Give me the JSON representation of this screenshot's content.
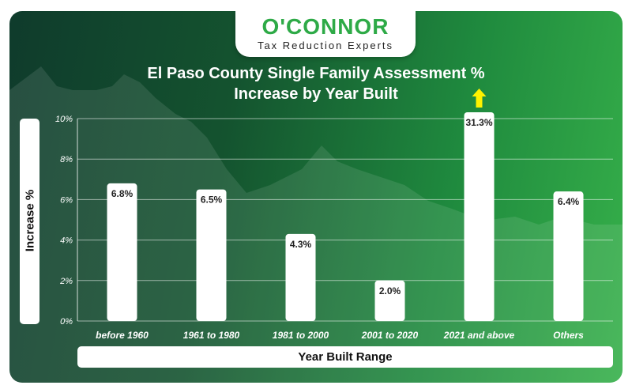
{
  "logo": {
    "name": "O'CONNOR",
    "tagline": "Tax Reduction Experts"
  },
  "colors": {
    "brand_green": "#2eaa47",
    "arrow": "#fff200",
    "bar": "#ffffff"
  },
  "chart_data": {
    "type": "bar",
    "title_line1": "El Paso County Single Family Assessment %",
    "title_line2": "Increase by Year Built",
    "xlabel": "Year Built Range",
    "ylabel": "Increase %",
    "categories": [
      "before 1960",
      "1961 to 1980",
      "1981 to 2000",
      "2001 to 2020",
      "2021 and above",
      "Others"
    ],
    "values": [
      6.8,
      6.5,
      4.3,
      2.0,
      31.3,
      6.4
    ],
    "data_labels": [
      "6.8%",
      "6.5%",
      "4.3%",
      "2.0%",
      "31.3%",
      "6.4%"
    ],
    "ylim": [
      0,
      10
    ],
    "yticks": [
      0,
      2,
      4,
      6,
      8,
      10
    ],
    "ytick_labels": [
      "0%",
      "2%",
      "4%",
      "6%",
      "8%",
      "10%"
    ],
    "grid": true,
    "overflow_indicator": "arrow above bar exceeding axis maximum"
  }
}
